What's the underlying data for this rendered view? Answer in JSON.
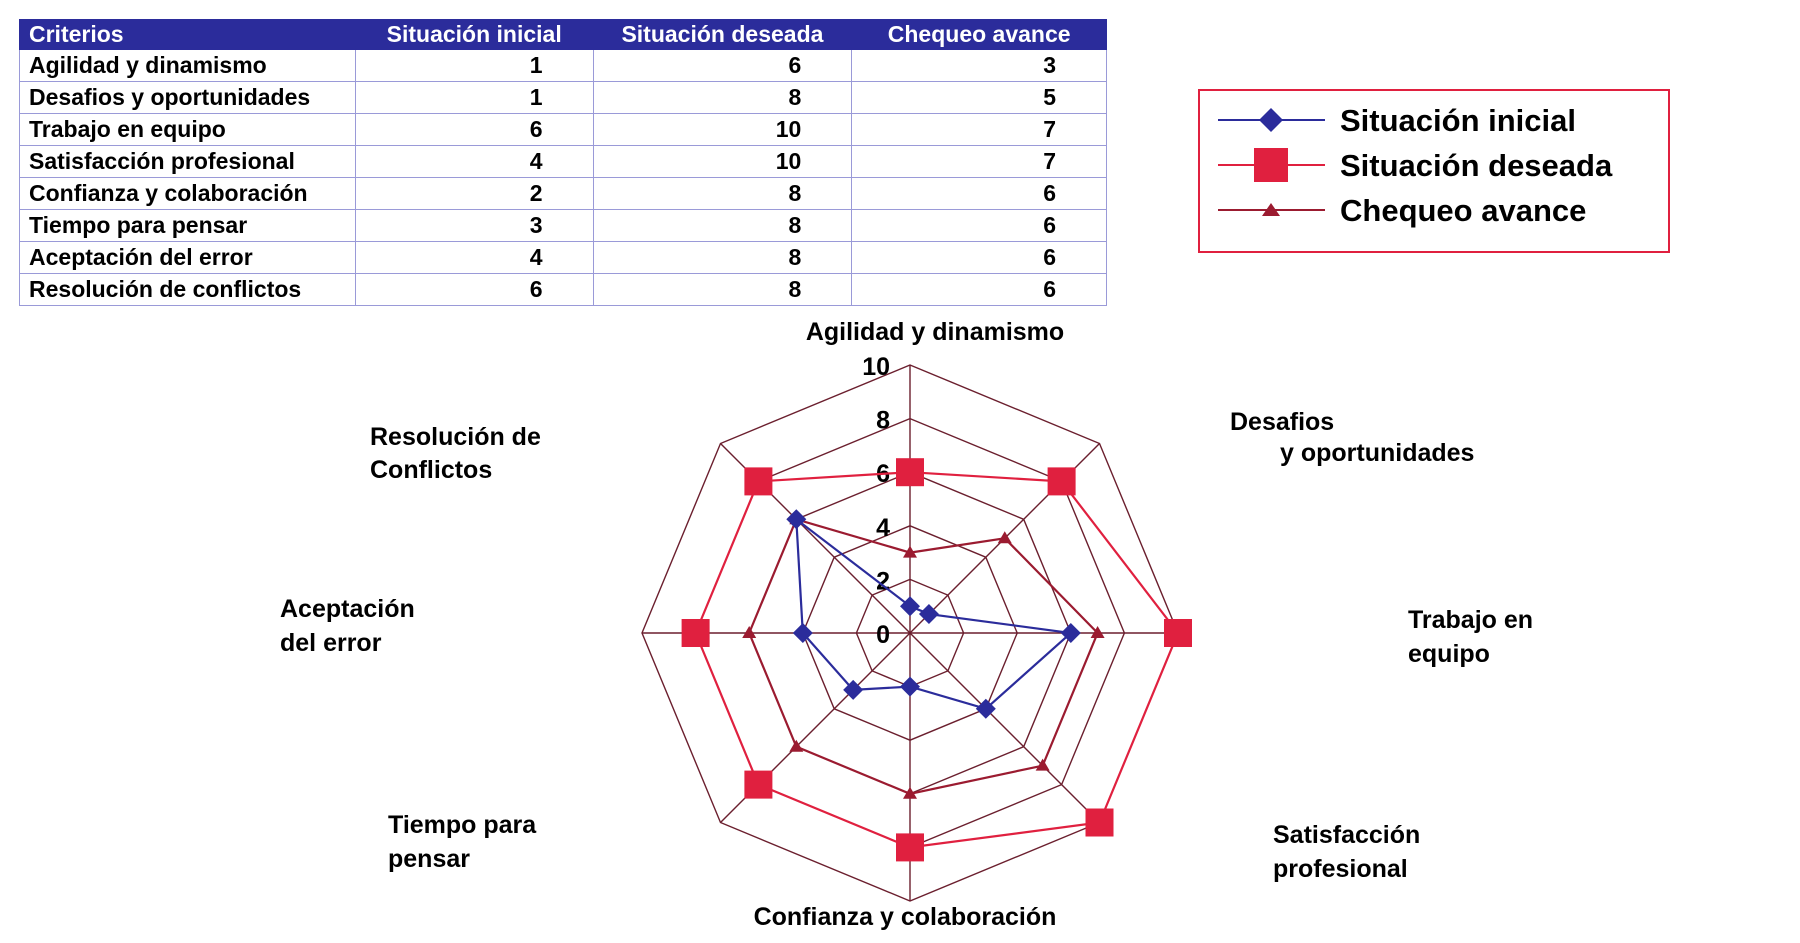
{
  "table": {
    "headers": [
      "Criterios",
      "Situación inicial",
      "Situación deseada",
      "Chequeo avance"
    ],
    "rows": [
      {
        "criterio": "Agilidad y dinamismo",
        "inicial": "1",
        "deseada": "6",
        "avance": "3"
      },
      {
        "criterio": "Desafios y oportunidades",
        "inicial": "1",
        "deseada": "8",
        "avance": "5"
      },
      {
        "criterio": "Trabajo en equipo",
        "inicial": "6",
        "deseada": "10",
        "avance": "7"
      },
      {
        "criterio": "Satisfacción profesional",
        "inicial": "4",
        "deseada": "10",
        "avance": "7"
      },
      {
        "criterio": "Confianza y colaboración",
        "inicial": "2",
        "deseada": "8",
        "avance": "6"
      },
      {
        "criterio": "Tiempo para pensar",
        "inicial": "3",
        "deseada": "8",
        "avance": "6"
      },
      {
        "criterio": "Aceptación del error",
        "inicial": "4",
        "deseada": "8",
        "avance": "6"
      },
      {
        "criterio": "Resolución de conflictos",
        "inicial": "6",
        "deseada": "8",
        "avance": "6"
      }
    ]
  },
  "chart_data": {
    "type": "radar",
    "axes": [
      [
        "Agilidad y dinamismo"
      ],
      [
        "Desafios",
        "y oportunidades"
      ],
      [
        "Trabajo en",
        "equipo"
      ],
      [
        "Satisfacción",
        "profesional"
      ],
      [
        "Confianza y colaboración"
      ],
      [
        "Tiempo para",
        "pensar"
      ],
      [
        "Aceptación",
        "del error"
      ],
      [
        "Resolución de",
        "Conflictos"
      ]
    ],
    "radial_ticks": [
      "0",
      "2",
      "4",
      "6",
      "8",
      "10"
    ],
    "rlim": [
      0,
      10
    ],
    "series": [
      {
        "name": "Situación inicial",
        "color": "#2b2c9b",
        "marker": "diamond",
        "values": [
          1,
          1,
          6,
          4,
          2,
          3,
          4,
          6
        ]
      },
      {
        "name": "Situación deseada",
        "color": "#e0203f",
        "marker": "square",
        "values": [
          6,
          8,
          10,
          10,
          8,
          8,
          8,
          8
        ]
      },
      {
        "name": "Chequeo avance",
        "color": "#9b1b30",
        "marker": "triangle",
        "values": [
          3,
          5,
          7,
          7,
          6,
          6,
          6,
          6
        ]
      }
    ],
    "grid_color": "#6b1f2e",
    "legend_position": "top-right",
    "legend_border": "#e0203f"
  }
}
